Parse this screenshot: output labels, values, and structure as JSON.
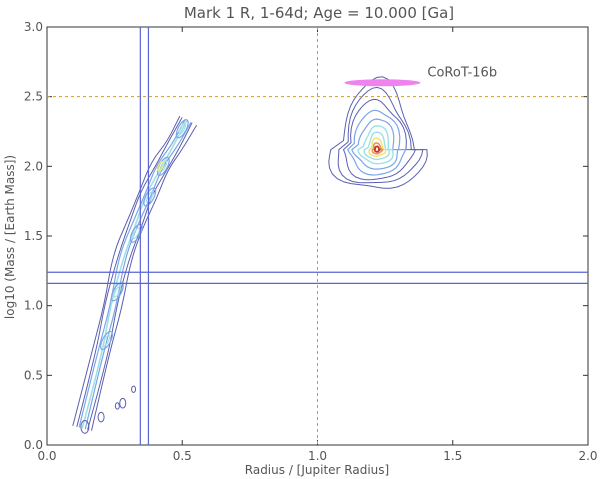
{
  "chart_data": {
    "type": "contour",
    "title": "Mark 1 R, 1-64d;  Age = 10.000 [Ga]",
    "xlabel": "Radius / [Jupiter Radius]",
    "ylabel": "log10 (Mass / [Earth Mass])",
    "xlim": [
      0.0,
      2.0
    ],
    "ylim": [
      0.0,
      3.0
    ],
    "xticks": [
      "0.0",
      "0.5",
      "1.0",
      "1.5",
      "2.0"
    ],
    "yticks": [
      "0.0",
      "0.5",
      "1.0",
      "1.5",
      "2.0",
      "2.5",
      "3.0"
    ],
    "grid": false,
    "reference_lines": {
      "vertical_solid": [
        0.345,
        0.375
      ],
      "horizontal_solid": [
        1.16,
        1.24
      ],
      "vertical_dashed": [
        1.0
      ],
      "horizontal_dashed": [
        2.5
      ],
      "solid_color": "#5a64d2",
      "dashed_color": "#c8a030"
    },
    "target": {
      "label": "CoRoT-16b",
      "x": 1.24,
      "y": 2.6,
      "color": "#ee82ee"
    },
    "contour_clusters": [
      {
        "name": "left band",
        "path": [
          [
            0.13,
            0.12
          ],
          [
            0.2,
            0.65
          ],
          [
            0.24,
            1.0
          ],
          [
            0.28,
            1.35
          ],
          [
            0.33,
            1.6
          ],
          [
            0.37,
            1.8
          ],
          [
            0.42,
            2.0
          ],
          [
            0.47,
            2.15
          ],
          [
            0.52,
            2.33
          ]
        ],
        "peak": [
          0.42,
          2.0
        ]
      },
      {
        "name": "right blob",
        "center": [
          1.22,
          2.12
        ],
        "x_range": [
          1.1,
          1.35
        ],
        "y_range": [
          1.93,
          2.57
        ]
      }
    ],
    "colors": {
      "outer": "#5a5fb0",
      "mid": "#7aa6e8",
      "inner": "#9fe0e6",
      "warm": "#f2e27a",
      "hot": "#e8964e",
      "peak": "#c8342c"
    }
  }
}
